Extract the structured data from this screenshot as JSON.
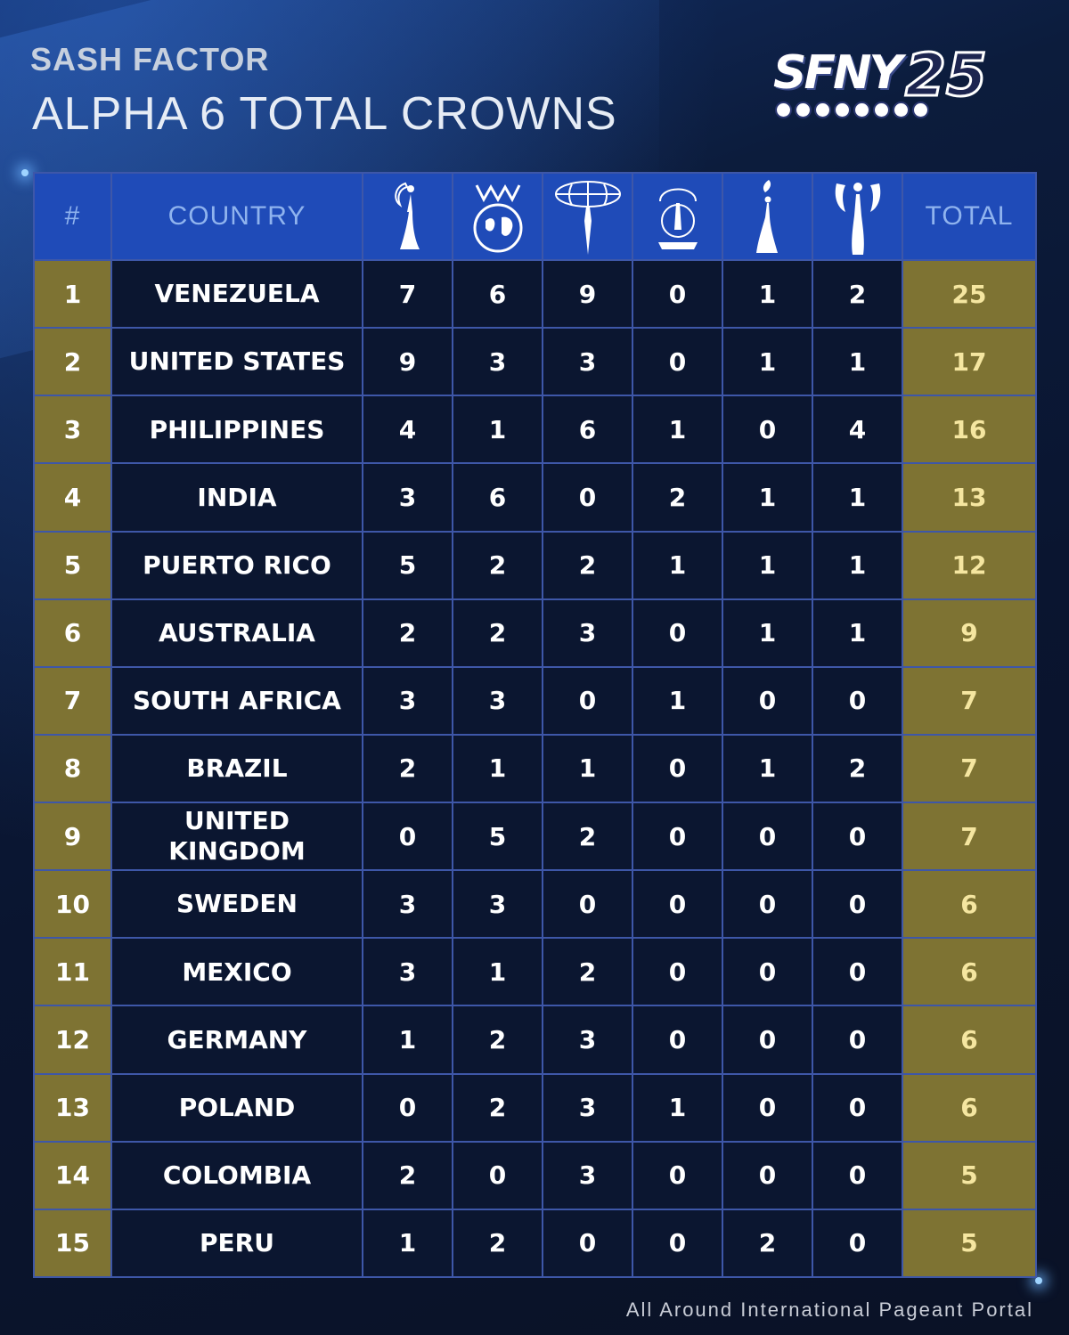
{
  "header": {
    "brand": "SASH FACTOR",
    "title": "ALPHA 6  TOTAL CROWNS",
    "logo_text": "SFNY",
    "logo_number": "25"
  },
  "table": {
    "columns": {
      "rank": "#",
      "country": "COUNTRY",
      "pageant_icons": [
        "crown-figure-icon-1",
        "globe-crown-icon",
        "globe-figure-icon",
        "supranational-seal-icon",
        "crown-figure-icon-5",
        "crown-figure-icon-6"
      ],
      "total": "TOTAL"
    },
    "rows": [
      {
        "rank": "1",
        "country": "VENEZUELA",
        "values": [
          "7",
          "6",
          "9",
          "0",
          "1",
          "2"
        ],
        "total": "25"
      },
      {
        "rank": "2",
        "country": "UNITED STATES",
        "values": [
          "9",
          "3",
          "3",
          "0",
          "1",
          "1"
        ],
        "total": "17"
      },
      {
        "rank": "3",
        "country": "PHILIPPINES",
        "values": [
          "4",
          "1",
          "6",
          "1",
          "0",
          "4"
        ],
        "total": "16"
      },
      {
        "rank": "4",
        "country": "INDIA",
        "values": [
          "3",
          "6",
          "0",
          "2",
          "1",
          "1"
        ],
        "total": "13"
      },
      {
        "rank": "5",
        "country": "PUERTO RICO",
        "values": [
          "5",
          "2",
          "2",
          "1",
          "1",
          "1"
        ],
        "total": "12"
      },
      {
        "rank": "6",
        "country": "AUSTRALIA",
        "values": [
          "2",
          "2",
          "3",
          "0",
          "1",
          "1"
        ],
        "total": "9"
      },
      {
        "rank": "7",
        "country": "SOUTH AFRICA",
        "values": [
          "3",
          "3",
          "0",
          "1",
          "0",
          "0"
        ],
        "total": "7"
      },
      {
        "rank": "8",
        "country": "BRAZIL",
        "values": [
          "2",
          "1",
          "1",
          "0",
          "1",
          "2"
        ],
        "total": "7"
      },
      {
        "rank": "9",
        "country": "UNITED KINGDOM",
        "values": [
          "0",
          "5",
          "2",
          "0",
          "0",
          "0"
        ],
        "total": "7"
      },
      {
        "rank": "10",
        "country": "SWEDEN",
        "values": [
          "3",
          "3",
          "0",
          "0",
          "0",
          "0"
        ],
        "total": "6"
      },
      {
        "rank": "11",
        "country": "MEXICO",
        "values": [
          "3",
          "1",
          "2",
          "0",
          "0",
          "0"
        ],
        "total": "6"
      },
      {
        "rank": "12",
        "country": "GERMANY",
        "values": [
          "1",
          "2",
          "3",
          "0",
          "0",
          "0"
        ],
        "total": "6"
      },
      {
        "rank": "13",
        "country": "POLAND",
        "values": [
          "0",
          "2",
          "3",
          "1",
          "0",
          "0"
        ],
        "total": "6"
      },
      {
        "rank": "14",
        "country": "COLOMBIA",
        "values": [
          "2",
          "0",
          "3",
          "0",
          "0",
          "0"
        ],
        "total": "5"
      },
      {
        "rank": "15",
        "country": "PERU",
        "values": [
          "1",
          "2",
          "0",
          "0",
          "2",
          "0"
        ],
        "total": "5"
      }
    ]
  },
  "footer": "All Around International Pageant Portal",
  "colors": {
    "header_blue": "#1f4bb8",
    "gold": "#7e7333",
    "cell_dark": "#0b1630",
    "border": "#3e57a8"
  }
}
